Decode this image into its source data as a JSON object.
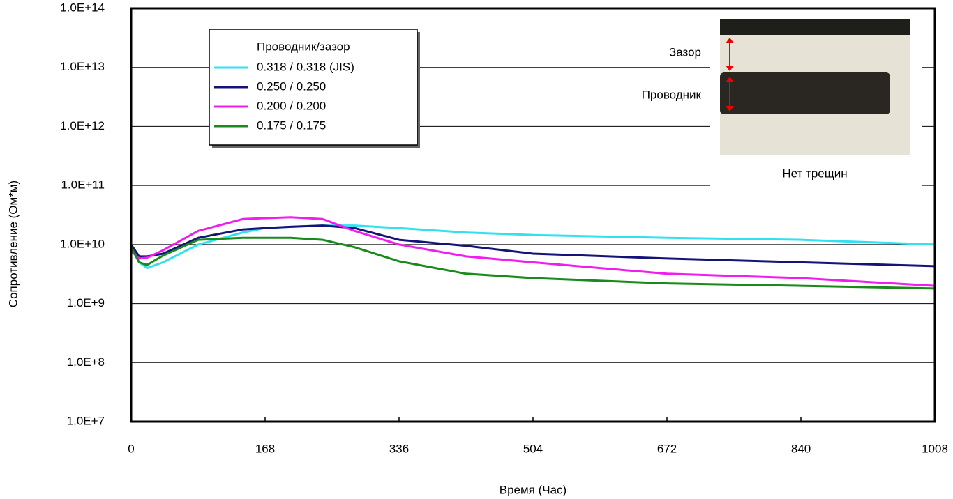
{
  "chart_data": {
    "type": "line",
    "x_label": "Время (Час)",
    "y_label": "Сопротивление (Ом*м)",
    "legend_title": "Проводник/зазор",
    "annotations": [
      "Зазор",
      "Проводник",
      "Нет трещин"
    ],
    "log_y": true,
    "grid": true,
    "legend_position": "upper left",
    "x": [
      0,
      10,
      20,
      40,
      84,
      140,
      168,
      200,
      240,
      280,
      336,
      420,
      504,
      672,
      840,
      1008
    ],
    "series": [
      {
        "name": "0.318 / 0.318 (JIS)",
        "color": "#33e0f0",
        "values": [
          10000000000.0,
          5000000000.0,
          4000000000.0,
          5000000000.0,
          10000000000.0,
          16000000000.0,
          19000000000.0,
          20000000000.0,
          21000000000.0,
          21000000000.0,
          19000000000.0,
          16000000000.0,
          14500000000.0,
          13000000000.0,
          12000000000.0,
          10000000000.0
        ]
      },
      {
        "name": "0.250 / 0.250",
        "color": "#141478",
        "values": [
          10000000000.0,
          6300000000.0,
          6300000000.0,
          7000000000.0,
          13000000000.0,
          18000000000.0,
          19000000000.0,
          20000000000.0,
          21000000000.0,
          19000000000.0,
          12000000000.0,
          9500000000.0,
          7000000000.0,
          5800000000.0,
          5000000000.0,
          4300000000.0
        ]
      },
      {
        "name": "0.200 / 0.200",
        "color": "#f01cf0",
        "values": [
          7800000000.0,
          5800000000.0,
          6000000000.0,
          8000000000.0,
          17000000000.0,
          27000000000.0,
          28000000000.0,
          29000000000.0,
          27000000000.0,
          17000000000.0,
          10000000000.0,
          6300000000.0,
          5000000000.0,
          3200000000.0,
          2700000000.0,
          2000000000.0
        ]
      },
      {
        "name": "0.175 / 0.175",
        "color": "#1a8a1a",
        "values": [
          9000000000.0,
          5000000000.0,
          4500000000.0,
          6500000000.0,
          12000000000.0,
          13000000000.0,
          13000000000.0,
          13000000000.0,
          12000000000.0,
          9000000000.0,
          5200000000.0,
          3200000000.0,
          2700000000.0,
          2200000000.0,
          2000000000.0,
          1800000000.0
        ]
      }
    ],
    "xlim": [
      0,
      1008
    ],
    "xticks": [
      0,
      168,
      336,
      504,
      672,
      840,
      1008
    ],
    "ylim": [
      10000000.0,
      100000000000000.0
    ],
    "yticks": [
      {
        "value": 10000000.0,
        "label": "1.0E+7"
      },
      {
        "value": 100000000.0,
        "label": "1.0E+8"
      },
      {
        "value": 1000000000.0,
        "label": "1.0E+9"
      },
      {
        "value": 10000000000.0,
        "label": "1.0E+10"
      },
      {
        "value": 100000000000.0,
        "label": "1.0E+11"
      },
      {
        "value": 1000000000000.0,
        "label": "1.0E+12"
      },
      {
        "value": 10000000000000.0,
        "label": "1.0E+13"
      },
      {
        "value": 100000000000000.0,
        "label": "1.0E+14"
      }
    ]
  }
}
